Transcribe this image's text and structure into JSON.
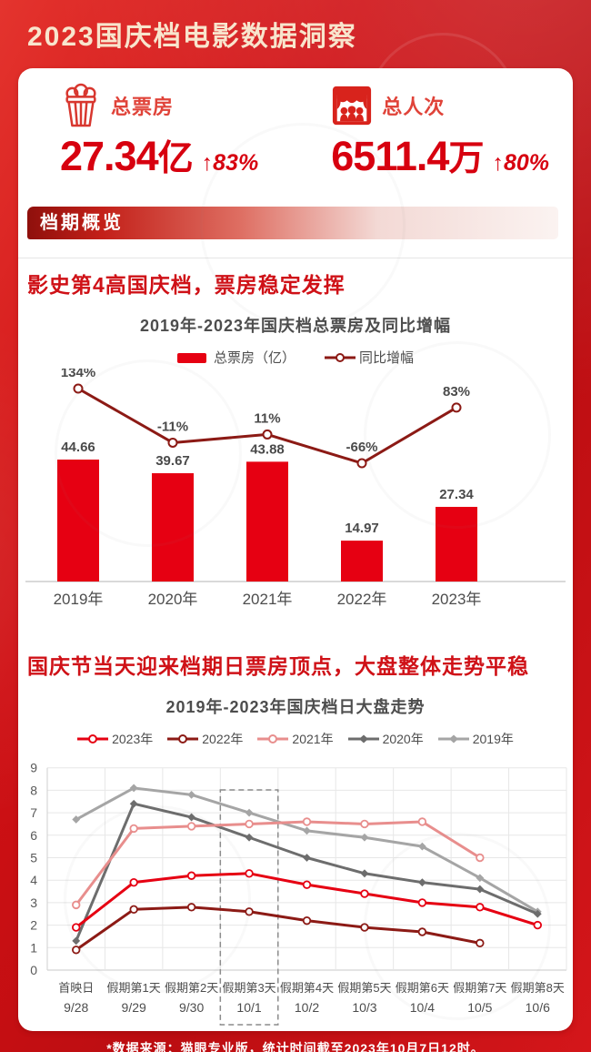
{
  "header": {
    "title": "2023国庆档电影数据洞察"
  },
  "stats": [
    {
      "icon": "popcorn-icon",
      "label": "总票房",
      "value": "27.34",
      "unit": "亿",
      "delta": "↑83%"
    },
    {
      "icon": "cinema-audience-icon",
      "label": "总人次",
      "value": "6511.4",
      "unit": "万",
      "delta": "↑80%"
    }
  ],
  "section": {
    "badge": "档期概览",
    "headline1": "影史第4高国庆档，票房稳定发挥",
    "headline2": "国庆节当天迎来档期日票房顶点，大盘整体走势平稳"
  },
  "footer": {
    "note": "*数据来源：猫眼专业版，统计时间截至2023年10月7日12时。"
  },
  "colors": {
    "accent_red": "#e60012",
    "dark_red_line": "#8c1a15",
    "pink_2021": "#e88e8d",
    "gray_2020": "#6d6d6d",
    "gray_2019": "#a5a5a5",
    "stat_number_red": "#d7000f",
    "headline_red": "#cf1117"
  },
  "chart_data": [
    {
      "type": "bar",
      "combo": "bar+line",
      "title": "2019年-2023年国庆档总票房及同比增幅",
      "categories": [
        "2019年",
        "2020年",
        "2021年",
        "2022年",
        "2023年"
      ],
      "legend_position": "top",
      "grid": false,
      "series": [
        {
          "name": "总票房（亿）",
          "chart": "bar",
          "color": "#e60012",
          "values": [
            44.66,
            39.67,
            43.88,
            14.97,
            27.34
          ]
        },
        {
          "name": "同比增幅",
          "chart": "line",
          "color": "#8c1a15",
          "marker": "circle",
          "values": [
            134,
            -11,
            11,
            -66,
            83
          ],
          "labels": [
            "134%",
            "-11%",
            "11%",
            "-66%",
            "83%"
          ]
        }
      ]
    },
    {
      "type": "line",
      "title": "2019年-2023年国庆档日大盘走势",
      "categories_top": [
        "首映日",
        "假期第1天",
        "假期第2天",
        "假期第3天",
        "假期第4天",
        "假期第5天",
        "假期第6天",
        "假期第7天",
        "假期第8天"
      ],
      "categories_bottom": [
        "9/28",
        "9/29",
        "9/30",
        "10/1",
        "10/2",
        "10/3",
        "10/4",
        "10/5",
        "10/6"
      ],
      "ylim": [
        0,
        9
      ],
      "grid": true,
      "legend_position": "top",
      "highlight_column_index": 3,
      "series": [
        {
          "name": "2023年",
          "color": "#e60012",
          "marker": "circle",
          "values": [
            1.9,
            3.9,
            4.2,
            4.3,
            3.8,
            3.4,
            3.0,
            2.8,
            2.0
          ]
        },
        {
          "name": "2022年",
          "color": "#8c1a15",
          "marker": "circle",
          "values": [
            0.9,
            2.7,
            2.8,
            2.6,
            2.2,
            1.9,
            1.7,
            1.2,
            null
          ]
        },
        {
          "name": "2021年",
          "color": "#e88e8d",
          "marker": "circle",
          "values": [
            2.9,
            6.3,
            6.4,
            6.5,
            6.6,
            6.5,
            6.6,
            5.0,
            null
          ]
        },
        {
          "name": "2020年",
          "color": "#6d6d6d",
          "marker": "diamond",
          "values": [
            1.3,
            7.4,
            6.8,
            5.9,
            5.0,
            4.3,
            3.9,
            3.6,
            2.5
          ]
        },
        {
          "name": "2019年",
          "color": "#a5a5a5",
          "marker": "diamond",
          "values": [
            6.7,
            8.1,
            7.8,
            7.0,
            6.2,
            5.9,
            5.5,
            4.1,
            2.6
          ]
        }
      ]
    }
  ]
}
